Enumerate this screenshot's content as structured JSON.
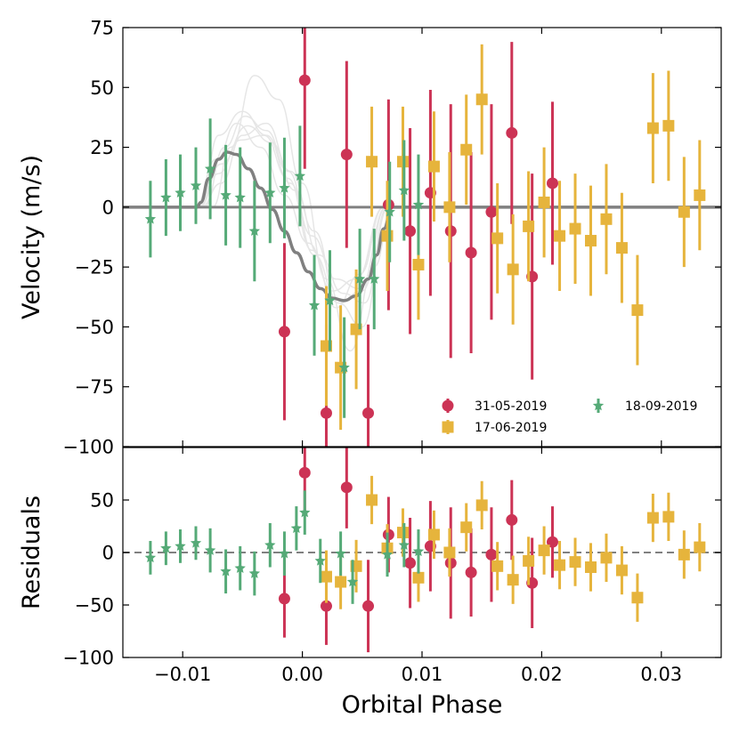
{
  "chart_data": [
    {
      "type": "scatter",
      "panel": "velocity",
      "ylabel": "Velocity (m/s)",
      "xlabel": "",
      "xlim": [
        -0.015,
        0.035
      ],
      "ylim": [
        -100,
        75
      ],
      "xticks": [
        -0.01,
        0.0,
        0.01,
        0.02,
        0.03
      ],
      "xtick_labels": [
        "−0.01",
        "0.00",
        "0.01",
        "0.02",
        "0.03"
      ],
      "yticks": [
        -100,
        -75,
        -50,
        -25,
        0,
        25,
        50,
        75
      ],
      "ytick_labels": [
        "−100",
        "−75",
        "−50",
        "−25",
        "0",
        "25",
        "50",
        "75"
      ],
      "legend_placement": "lower-right",
      "series": [
        {
          "name": "31-05-2019",
          "marker": "circle",
          "color": "#cc3355",
          "points": [
            {
              "x": -0.0015,
              "y": -52,
              "err": 37
            },
            {
              "x": 0.0002,
              "y": 53,
              "err": 37
            },
            {
              "x": 0.002,
              "y": -86,
              "err": 37
            },
            {
              "x": 0.0037,
              "y": 22,
              "err": 39
            },
            {
              "x": 0.0055,
              "y": -86,
              "err": 37
            },
            {
              "x": 0.0072,
              "y": 1,
              "err": 44
            },
            {
              "x": 0.009,
              "y": -10,
              "err": 43
            },
            {
              "x": 0.0107,
              "y": 6,
              "err": 43
            },
            {
              "x": 0.0124,
              "y": -10,
              "err": 53
            },
            {
              "x": 0.0141,
              "y": -19,
              "err": 42
            },
            {
              "x": 0.0158,
              "y": -2,
              "err": 45
            },
            {
              "x": 0.0175,
              "y": 31,
              "err": 38
            },
            {
              "x": 0.0192,
              "y": -29,
              "err": 43
            },
            {
              "x": 0.0209,
              "y": 10,
              "err": 34
            }
          ]
        },
        {
          "name": "17-06-2019",
          "marker": "square",
          "color": "#e6b43c",
          "points": [
            {
              "x": 0.002,
              "y": -58,
              "err": 25
            },
            {
              "x": 0.0032,
              "y": -67,
              "err": 26
            },
            {
              "x": 0.0045,
              "y": -51,
              "err": 25
            },
            {
              "x": 0.0058,
              "y": 19,
              "err": 23
            },
            {
              "x": 0.0071,
              "y": -12,
              "err": 23
            },
            {
              "x": 0.0084,
              "y": 19,
              "err": 23
            },
            {
              "x": 0.0097,
              "y": -24,
              "err": 23
            },
            {
              "x": 0.011,
              "y": 17,
              "err": 23
            },
            {
              "x": 0.0123,
              "y": 0,
              "err": 23
            },
            {
              "x": 0.0137,
              "y": 24,
              "err": 23
            },
            {
              "x": 0.015,
              "y": 45,
              "err": 23
            },
            {
              "x": 0.0163,
              "y": -13,
              "err": 23
            },
            {
              "x": 0.0176,
              "y": -26,
              "err": 23
            },
            {
              "x": 0.0189,
              "y": -8,
              "err": 23
            },
            {
              "x": 0.0202,
              "y": 2,
              "err": 23
            },
            {
              "x": 0.0215,
              "y": -12,
              "err": 23
            },
            {
              "x": 0.0228,
              "y": -9,
              "err": 23
            },
            {
              "x": 0.0241,
              "y": -14,
              "err": 23
            },
            {
              "x": 0.0254,
              "y": -5,
              "err": 23
            },
            {
              "x": 0.0267,
              "y": -17,
              "err": 23
            },
            {
              "x": 0.028,
              "y": -43,
              "err": 23
            },
            {
              "x": 0.0293,
              "y": 33,
              "err": 23
            },
            {
              "x": 0.0306,
              "y": 34,
              "err": 23
            },
            {
              "x": 0.0319,
              "y": -2,
              "err": 23
            },
            {
              "x": 0.0332,
              "y": 5,
              "err": 23
            }
          ]
        },
        {
          "name": "18-09-2019",
          "marker": "star",
          "color": "#55aa77",
          "points": [
            {
              "x": -0.0127,
              "y": -5,
              "err": 16
            },
            {
              "x": -0.0114,
              "y": 4,
              "err": 16
            },
            {
              "x": -0.0102,
              "y": 6,
              "err": 16
            },
            {
              "x": -0.0089,
              "y": 9,
              "err": 16
            },
            {
              "x": -0.0077,
              "y": 16,
              "err": 21
            },
            {
              "x": -0.0064,
              "y": 5,
              "err": 21
            },
            {
              "x": -0.0052,
              "y": 4,
              "err": 21
            },
            {
              "x": -0.004,
              "y": -10,
              "err": 21
            },
            {
              "x": -0.0027,
              "y": 6,
              "err": 21
            },
            {
              "x": -0.0015,
              "y": 8,
              "err": 21
            },
            {
              "x": -0.0002,
              "y": 13,
              "err": 21
            },
            {
              "x": 0.001,
              "y": -41,
              "err": 21
            },
            {
              "x": 0.0023,
              "y": -39,
              "err": 21
            },
            {
              "x": 0.0035,
              "y": -67,
              "err": 21
            },
            {
              "x": 0.0048,
              "y": -30,
              "err": 21
            },
            {
              "x": 0.006,
              "y": -30,
              "err": 21
            },
            {
              "x": 0.0073,
              "y": -2,
              "err": 21
            },
            {
              "x": 0.0085,
              "y": 7,
              "err": 21
            },
            {
              "x": 0.0097,
              "y": 1,
              "err": 21
            }
          ]
        }
      ],
      "model": {
        "color": "#808080",
        "x": [
          -0.015,
          -0.0088,
          -0.0085,
          -0.0078,
          -0.007,
          -0.0063,
          -0.0055,
          -0.0045,
          -0.0035,
          -0.0025,
          -0.0015,
          -0.0005,
          0.0005,
          0.0015,
          0.0025,
          0.0035,
          0.0045,
          0.0055,
          0.0062,
          0.0068,
          0.0075,
          0.035
        ],
        "y": [
          0,
          0,
          2,
          12,
          20,
          23,
          22,
          16,
          8,
          -1,
          -10,
          -19,
          -27,
          -34,
          -38,
          -39,
          -37,
          -30,
          -20,
          -9,
          0,
          0
        ]
      },
      "draws": {
        "color": "#e6e6e6",
        "curves": [
          {
            "x": [
              -0.0075,
              -0.006,
              -0.004,
              -0.002,
              0.0,
              0.002,
              0.004,
              0.006,
              0.0075
            ],
            "y": [
              0,
              25,
              55,
              45,
              10,
              -30,
              -60,
              -25,
              0
            ]
          },
          {
            "x": [
              -0.0085,
              -0.007,
              -0.005,
              -0.003,
              -0.001,
              0.001,
              0.003,
              0.005,
              0.007
            ],
            "y": [
              0,
              30,
              40,
              30,
              10,
              -20,
              -40,
              -35,
              0
            ]
          },
          {
            "x": [
              -0.0085,
              -0.0068,
              -0.005,
              -0.003,
              -0.001,
              0.001,
              0.003,
              0.005,
              0.0072
            ],
            "y": [
              0,
              10,
              30,
              35,
              15,
              -10,
              -40,
              -50,
              0
            ]
          },
          {
            "x": [
              -0.009,
              -0.0072,
              -0.0055,
              -0.0035,
              -0.0015,
              0.0005,
              0.0025,
              0.0045,
              0.0068
            ],
            "y": [
              0,
              20,
              35,
              25,
              5,
              -15,
              -35,
              -30,
              0
            ]
          },
          {
            "x": [
              -0.0082,
              -0.0065,
              -0.0048,
              -0.003,
              -0.0012,
              0.0008,
              0.0028,
              0.0048,
              0.007
            ],
            "y": [
              0,
              25,
              38,
              32,
              15,
              -12,
              -30,
              -34,
              0
            ]
          },
          {
            "x": [
              -0.0088,
              -0.007,
              -0.0052,
              -0.0032,
              -0.0012,
              0.0008,
              0.0028,
              0.0048,
              0.0068
            ],
            "y": [
              0,
              14,
              28,
              30,
              12,
              -18,
              -42,
              -28,
              0
            ]
          },
          {
            "x": [
              -0.0086,
              -0.0068,
              -0.0046,
              -0.0026,
              -0.0006,
              0.0014,
              0.0034,
              0.0052,
              0.0071
            ],
            "y": [
              0,
              18,
              34,
              27,
              7,
              -20,
              -36,
              -40,
              0
            ]
          }
        ]
      },
      "zero_line": 0
    },
    {
      "type": "scatter",
      "panel": "residuals",
      "ylabel": "Residuals",
      "xlabel": "Orbital Phase",
      "xlim": [
        -0.015,
        0.035
      ],
      "ylim": [
        -100,
        100
      ],
      "xticks": [
        -0.01,
        0.0,
        0.01,
        0.02,
        0.03
      ],
      "xtick_labels": [
        "−0.01",
        "0.00",
        "0.01",
        "0.02",
        "0.03"
      ],
      "yticks": [
        -100,
        -50,
        0,
        50
      ],
      "ytick_labels": [
        "−100",
        "−50",
        "0",
        "50"
      ],
      "series": [
        {
          "name": "31-05-2019",
          "marker": "circle",
          "color": "#cc3355",
          "points": [
            {
              "x": -0.0015,
              "y": -44,
              "err": 37
            },
            {
              "x": 0.0002,
              "y": 76,
              "err": 37
            },
            {
              "x": 0.002,
              "y": -51,
              "err": 37
            },
            {
              "x": 0.0037,
              "y": 62,
              "err": 39
            },
            {
              "x": 0.0055,
              "y": -51,
              "err": 44
            },
            {
              "x": 0.0072,
              "y": 17,
              "err": 36
            },
            {
              "x": 0.009,
              "y": -10,
              "err": 43
            },
            {
              "x": 0.0107,
              "y": 6,
              "err": 43
            },
            {
              "x": 0.0124,
              "y": -10,
              "err": 53
            },
            {
              "x": 0.0141,
              "y": -19,
              "err": 42
            },
            {
              "x": 0.0158,
              "y": -2,
              "err": 45
            },
            {
              "x": 0.0175,
              "y": 31,
              "err": 38
            },
            {
              "x": 0.0192,
              "y": -29,
              "err": 43
            },
            {
              "x": 0.0209,
              "y": 10,
              "err": 34
            }
          ]
        },
        {
          "name": "17-06-2019",
          "marker": "square",
          "color": "#e6b43c",
          "points": [
            {
              "x": 0.002,
              "y": -23,
              "err": 25
            },
            {
              "x": 0.0032,
              "y": -28,
              "err": 26
            },
            {
              "x": 0.0045,
              "y": -13,
              "err": 25
            },
            {
              "x": 0.0058,
              "y": 50,
              "err": 23
            },
            {
              "x": 0.0071,
              "y": 4,
              "err": 23
            },
            {
              "x": 0.0084,
              "y": 19,
              "err": 23
            },
            {
              "x": 0.0097,
              "y": -24,
              "err": 23
            },
            {
              "x": 0.011,
              "y": 17,
              "err": 23
            },
            {
              "x": 0.0123,
              "y": 0,
              "err": 23
            },
            {
              "x": 0.0137,
              "y": 24,
              "err": 23
            },
            {
              "x": 0.015,
              "y": 45,
              "err": 23
            },
            {
              "x": 0.0163,
              "y": -13,
              "err": 23
            },
            {
              "x": 0.0176,
              "y": -26,
              "err": 23
            },
            {
              "x": 0.0189,
              "y": -8,
              "err": 23
            },
            {
              "x": 0.0202,
              "y": 2,
              "err": 23
            },
            {
              "x": 0.0215,
              "y": -12,
              "err": 23
            },
            {
              "x": 0.0228,
              "y": -9,
              "err": 23
            },
            {
              "x": 0.0241,
              "y": -14,
              "err": 23
            },
            {
              "x": 0.0254,
              "y": -5,
              "err": 23
            },
            {
              "x": 0.0267,
              "y": -17,
              "err": 23
            },
            {
              "x": 0.028,
              "y": -43,
              "err": 23
            },
            {
              "x": 0.0293,
              "y": 33,
              "err": 23
            },
            {
              "x": 0.0306,
              "y": 34,
              "err": 23
            },
            {
              "x": 0.0319,
              "y": -2,
              "err": 23
            },
            {
              "x": 0.0332,
              "y": 5,
              "err": 23
            }
          ]
        },
        {
          "name": "18-09-2019",
          "marker": "star",
          "color": "#55aa77",
          "points": [
            {
              "x": -0.0127,
              "y": -5,
              "err": 16
            },
            {
              "x": -0.0114,
              "y": 4,
              "err": 16
            },
            {
              "x": -0.0102,
              "y": 6,
              "err": 16
            },
            {
              "x": -0.0089,
              "y": 9,
              "err": 16
            },
            {
              "x": -0.0077,
              "y": 2,
              "err": 21
            },
            {
              "x": -0.0064,
              "y": -18,
              "err": 21
            },
            {
              "x": -0.0052,
              "y": -15,
              "err": 21
            },
            {
              "x": -0.004,
              "y": -20,
              "err": 21
            },
            {
              "x": -0.0027,
              "y": 7,
              "err": 21
            },
            {
              "x": -0.0015,
              "y": -1,
              "err": 21
            },
            {
              "x": -0.0005,
              "y": 23,
              "err": 21
            },
            {
              "x": 0.0002,
              "y": 38,
              "err": 21
            },
            {
              "x": 0.0015,
              "y": -8,
              "err": 21
            },
            {
              "x": 0.0032,
              "y": -1,
              "err": 21
            },
            {
              "x": 0.0042,
              "y": -28,
              "err": 21
            },
            {
              "x": 0.0071,
              "y": -2,
              "err": 21
            },
            {
              "x": 0.0085,
              "y": 7,
              "err": 21
            },
            {
              "x": 0.0097,
              "y": 1,
              "err": 21
            }
          ]
        }
      ],
      "zero_line": 0
    }
  ]
}
